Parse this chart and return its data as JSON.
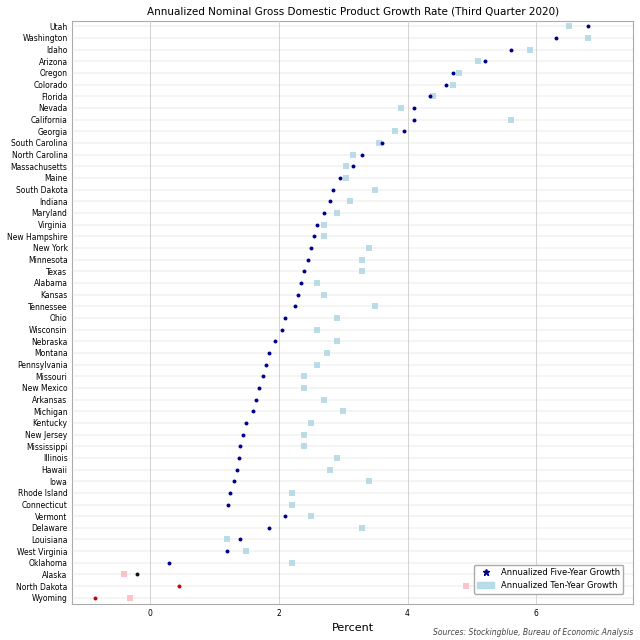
{
  "title": "Annualized Nominal Gross Domestic Product Growth Rate (Third Quarter 2020)",
  "xlabel": "Percent",
  "source": "Sources: Stockingblue, Bureau of Economic Analysis",
  "states": [
    "Utah",
    "Washington",
    "Idaho",
    "Arizona",
    "Oregon",
    "Colorado",
    "Florida",
    "Nevada",
    "California",
    "Georgia",
    "South Carolina",
    "North Carolina",
    "Massachusetts",
    "Maine",
    "South Dakota",
    "Indiana",
    "Maryland",
    "Virginia",
    "New Hampshire",
    "New York",
    "Minnesota",
    "Texas",
    "Alabama",
    "Kansas",
    "Tennessee",
    "Ohio",
    "Wisconsin",
    "Nebraska",
    "Montana",
    "Pennsylvania",
    "Missouri",
    "New Mexico",
    "Arkansas",
    "Michigan",
    "Kentucky",
    "New Jersey",
    "Mississippi",
    "Illinois",
    "Hawaii",
    "Iowa",
    "Rhode Island",
    "Connecticut",
    "Vermont",
    "Delaware",
    "Louisiana",
    "West Virginia",
    "Oklahoma",
    "Alaska",
    "North Dakota",
    "Wyoming"
  ],
  "five_year": [
    6.8,
    6.3,
    5.6,
    5.2,
    4.7,
    4.6,
    4.35,
    4.1,
    4.1,
    3.95,
    3.6,
    3.3,
    3.15,
    2.95,
    2.85,
    2.8,
    2.7,
    2.6,
    2.55,
    2.5,
    2.45,
    2.4,
    2.35,
    2.3,
    2.25,
    2.1,
    2.05,
    1.95,
    1.85,
    1.8,
    1.75,
    1.7,
    1.65,
    1.6,
    1.5,
    1.45,
    1.4,
    1.38,
    1.35,
    1.3,
    1.25,
    1.22,
    2.1,
    1.85,
    1.4,
    1.2,
    0.3,
    -0.2,
    0.45,
    -0.85
  ],
  "ten_year": [
    6.5,
    6.8,
    5.9,
    5.1,
    4.8,
    4.7,
    4.4,
    3.9,
    5.6,
    3.8,
    3.55,
    3.15,
    3.05,
    3.05,
    3.5,
    3.1,
    2.9,
    2.7,
    2.7,
    3.4,
    3.3,
    3.3,
    2.6,
    2.7,
    3.5,
    2.9,
    2.6,
    2.9,
    2.75,
    2.6,
    2.4,
    2.4,
    2.7,
    3.0,
    2.5,
    2.4,
    2.4,
    2.9,
    2.8,
    3.4,
    2.2,
    2.2,
    2.5,
    3.3,
    1.2,
    1.5,
    2.2,
    -0.4,
    4.9,
    -0.3
  ],
  "dot_color_five": [
    "#00008B",
    "#00008B",
    "#00008B",
    "#00008B",
    "#00008B",
    "#00008B",
    "#00008B",
    "#00008B",
    "#00008B",
    "#00008B",
    "#00008B",
    "#00008B",
    "#00008B",
    "#00008B",
    "#00008B",
    "#00008B",
    "#00008B",
    "#00008B",
    "#00008B",
    "#00008B",
    "#00008B",
    "#00008B",
    "#00008B",
    "#00008B",
    "#00008B",
    "#00008B",
    "#00008B",
    "#00008B",
    "#00008B",
    "#00008B",
    "#00008B",
    "#00008B",
    "#00008B",
    "#00008B",
    "#00008B",
    "#00008B",
    "#00008B",
    "#00008B",
    "#00008B",
    "#00008B",
    "#00008B",
    "#00008B",
    "#00008B",
    "#00008B",
    "#00008B",
    "#00008B",
    "#00008B",
    "#111111",
    "#CC0000",
    "#CC0000"
  ],
  "square_color_ten": [
    "#ADD8E6",
    "#ADD8E6",
    "#ADD8E6",
    "#ADD8E6",
    "#ADD8E6",
    "#ADD8E6",
    "#ADD8E6",
    "#ADD8E6",
    "#ADD8E6",
    "#ADD8E6",
    "#ADD8E6",
    "#ADD8E6",
    "#ADD8E6",
    "#ADD8E6",
    "#ADD8E6",
    "#ADD8E6",
    "#ADD8E6",
    "#ADD8E6",
    "#ADD8E6",
    "#ADD8E6",
    "#ADD8E6",
    "#ADD8E6",
    "#ADD8E6",
    "#ADD8E6",
    "#ADD8E6",
    "#ADD8E6",
    "#ADD8E6",
    "#ADD8E6",
    "#ADD8E6",
    "#ADD8E6",
    "#ADD8E6",
    "#ADD8E6",
    "#ADD8E6",
    "#ADD8E6",
    "#ADD8E6",
    "#ADD8E6",
    "#ADD8E6",
    "#ADD8E6",
    "#ADD8E6",
    "#ADD8E6",
    "#ADD8E6",
    "#ADD8E6",
    "#ADD8E6",
    "#ADD8E6",
    "#ADD8E6",
    "#ADD8E6",
    "#ADD8E6",
    "#FFB6C1",
    "#FFB6C1",
    "#FFB6C1"
  ],
  "xlim": [
    -1.2,
    7.5
  ],
  "xticks": [
    0,
    2,
    4,
    6
  ],
  "xtick_labels": [
    "0",
    "2",
    "4",
    "6"
  ],
  "background_color": "#FFFFFF",
  "grid_color": "#CCCCCC"
}
